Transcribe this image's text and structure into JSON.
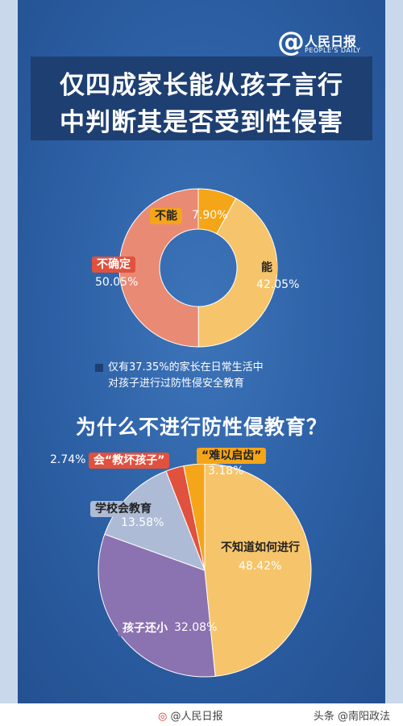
{
  "brand": {
    "logo_name": "人民日报",
    "logo_en": "PEOPLE'S DAILY"
  },
  "title": {
    "line1": "仅四成家长能从孩子言行",
    "line2": "中判断其是否受到性侵害"
  },
  "note": {
    "line1": "仅有37.35%的家长在日常生活中",
    "line2": "对孩子进行过防性侵安全教育"
  },
  "question2": "为什么不进行防性侵教育？",
  "chart_data": [
    {
      "type": "pie",
      "style": "donut",
      "title": "",
      "categories": [
        "能",
        "不确定",
        "不能"
      ],
      "values": [
        42.05,
        50.05,
        7.9
      ],
      "value_labels": [
        "42.05%",
        "50.05%",
        "7.90%"
      ],
      "colors": [
        "#f6c46a",
        "#e98a74",
        "#f5a518"
      ]
    },
    {
      "type": "pie",
      "title": "为什么不进行防性侵教育？",
      "categories": [
        "不知道如何进行",
        "孩子还小",
        "学校会教育",
        "会“教坏孩子”",
        "“难以启齿”"
      ],
      "values": [
        48.42,
        32.08,
        13.58,
        2.74,
        3.18
      ],
      "value_labels": [
        "48.42%",
        "32.08%",
        "13.58%",
        "2.74%",
        "3.18%"
      ],
      "colors": [
        "#f6c46a",
        "#8b72b0",
        "#aebbd6",
        "#e0513e",
        "#f5a518"
      ]
    }
  ],
  "footer": {
    "weibo": "@人民日报",
    "source": "头条 @南阳政法"
  }
}
